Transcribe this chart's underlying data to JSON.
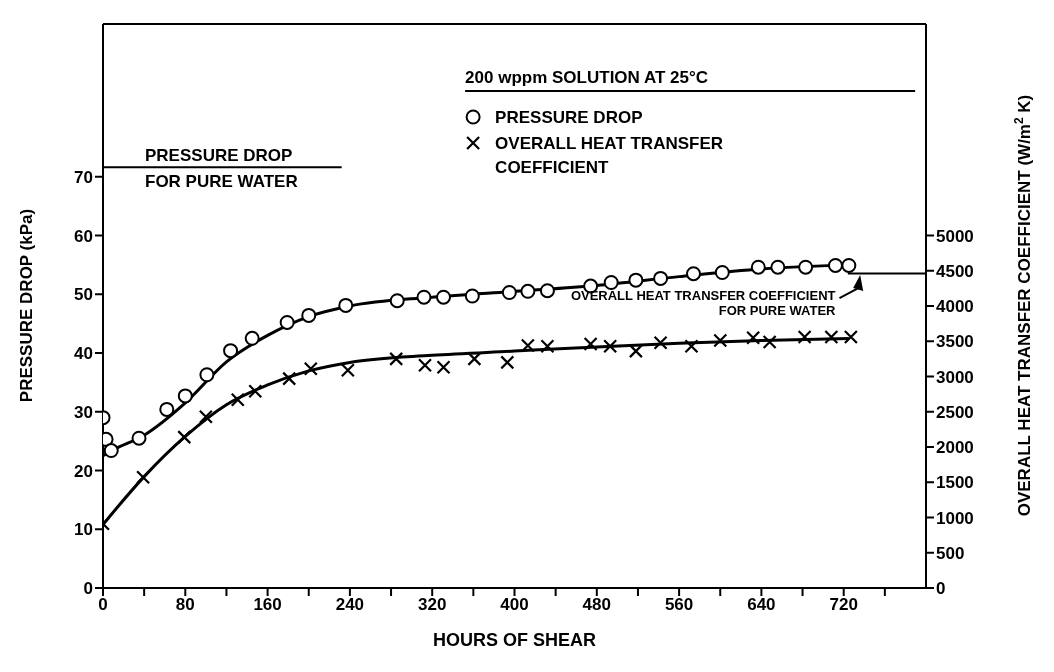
{
  "chart_data": {
    "type": "scatter",
    "xlabel": "HOURS OF SHEAR",
    "ylabel": "PRESSURE DROP (kPa)",
    "y2label": "OVERALL HEAT TRANSFER COEFFICIENT (W/m$^{2}$ K)",
    "legend_title": "200 wppm SOLUTION AT 25°C",
    "legend": "top right",
    "grid": false,
    "xlim": [
      0,
      800
    ],
    "ylim": [
      0,
      96
    ],
    "y2lim": [
      0,
      8000
    ],
    "xticks": [
      0,
      {
        "value": 40,
        "label": null
      },
      80,
      {
        "value": 120,
        "label": null
      },
      160,
      {
        "value": 200,
        "label": null
      },
      240,
      {
        "value": 280,
        "label": null
      },
      320,
      {
        "value": 360,
        "label": null
      },
      400,
      {
        "value": 440,
        "label": null
      },
      480,
      {
        "value": 520,
        "label": null
      },
      560,
      {
        "value": 600,
        "label": null
      },
      640,
      {
        "value": 680,
        "label": null
      },
      720,
      {
        "value": 760,
        "label": null
      }
    ],
    "yticks": [
      0,
      10,
      20,
      30,
      40,
      50,
      60,
      70
    ],
    "y2ticks": [
      0,
      500,
      1000,
      1500,
      2000,
      2500,
      3000,
      3500,
      4000,
      4500,
      5000
    ],
    "series": [
      {
        "name": "PRESSURE DROP",
        "marker": "circle",
        "color": "#000000",
        "x": [
          0,
          3,
          8,
          35,
          62,
          80,
          101,
          124,
          145,
          179,
          200,
          236,
          286,
          312,
          331,
          359,
          395,
          413,
          432,
          474,
          494,
          518,
          542,
          574,
          602,
          637,
          656,
          683,
          712,
          725
        ],
        "values": [
          29.0,
          25.3,
          23.4,
          25.5,
          30.4,
          32.7,
          36.3,
          40.4,
          42.5,
          45.2,
          46.4,
          48.1,
          48.9,
          49.5,
          49.5,
          49.7,
          50.3,
          50.5,
          50.6,
          51.4,
          52.0,
          52.4,
          52.7,
          53.5,
          53.7,
          54.6,
          54.6,
          54.6,
          54.9,
          54.9
        ]
      },
      {
        "name": "OVERALL HEAT TRANSFER COEFFICIENT",
        "marker": "cross",
        "axis": "y2",
        "color": "#000000",
        "x": [
          0,
          39,
          79,
          100,
          131,
          148,
          181,
          202,
          238,
          285,
          313,
          331,
          361,
          393,
          413,
          432,
          474,
          493,
          518,
          542,
          572,
          600,
          632,
          648,
          682,
          708,
          727
        ],
        "values": [
          910,
          1570,
          2140,
          2430,
          2670,
          2790,
          2970,
          3110,
          3090,
          3250,
          3160,
          3130,
          3250,
          3200,
          3440,
          3430,
          3460,
          3430,
          3360,
          3480,
          3430,
          3510,
          3550,
          3490,
          3560,
          3560,
          3560
        ]
      },
      {
        "type": "line",
        "marker": "none",
        "line_style": "solid",
        "color": "#000000",
        "x": [
          0,
          10,
          40,
          80,
          120,
          160,
          200,
          240,
          320,
          400,
          480,
          560,
          640,
          725
        ],
        "values": [
          22.5,
          23.5,
          26,
          31.5,
          38.5,
          43,
          46.2,
          48,
          49.5,
          50.5,
          51.5,
          53,
          54.3,
          55
        ]
      },
      {
        "type": "line",
        "marker": "none",
        "line_style": "solid",
        "axis": "y2",
        "color": "#000000",
        "x": [
          0,
          40,
          80,
          120,
          160,
          200,
          240,
          320,
          400,
          480,
          560,
          640,
          725
        ],
        "values": [
          900,
          1580,
          2150,
          2600,
          2880,
          3080,
          3200,
          3300,
          3360,
          3420,
          3470,
          3510,
          3540
        ]
      }
    ],
    "ref_lines": [
      {
        "axis": "y",
        "value": 71.6,
        "label": "PRESSURE DROP FOR PURE WATER",
        "color": "#000000"
      },
      {
        "axis": "y2",
        "value": 4460,
        "label": "OVERALL HEAT TRANSFER COEFFICIENT FOR PURE WATER",
        "color": "#000000"
      }
    ]
  }
}
